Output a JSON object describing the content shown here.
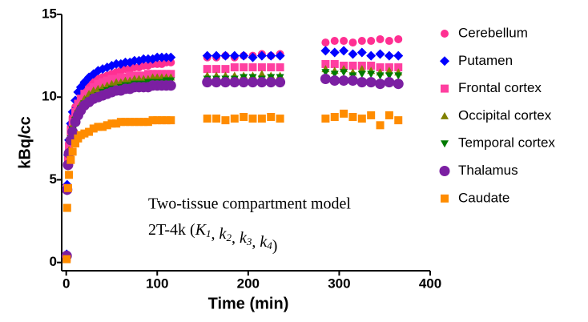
{
  "chart_data": {
    "type": "scatter",
    "xlabel": "Time (min)",
    "ylabel": "kBq/cc",
    "xlim": [
      -5,
      400
    ],
    "ylim": [
      -0.5,
      15
    ],
    "xticks": [
      0,
      100,
      200,
      300,
      400
    ],
    "yticks": [
      0,
      5,
      10,
      15
    ],
    "annotation": {
      "line1": "Two-tissue compartment model",
      "prefix": "2T-4k (",
      "separator": ", ",
      "suffix": ")",
      "params": [
        {
          "symbol": "K",
          "subscript": "1"
        },
        {
          "symbol": "k",
          "subscript": "2"
        },
        {
          "symbol": "k",
          "subscript": "3"
        },
        {
          "symbol": "k",
          "subscript": "4"
        }
      ]
    },
    "x": [
      0.5,
      1,
      2,
      3,
      5,
      7,
      10,
      13,
      16,
      20,
      25,
      30,
      35,
      40,
      45,
      50,
      55,
      60,
      65,
      70,
      75,
      80,
      85,
      90,
      95,
      100,
      105,
      110,
      115,
      155,
      165,
      175,
      185,
      195,
      205,
      215,
      225,
      235,
      285,
      295,
      305,
      315,
      325,
      335,
      345,
      355,
      365
    ],
    "series": [
      {
        "name": "Cerebellum",
        "color": "#ff2f92",
        "marker": "circle",
        "values": [
          0.4,
          4.6,
          6.4,
          7.2,
          8.2,
          8.8,
          9.4,
          9.8,
          10.1,
          10.4,
          10.7,
          10.9,
          11.1,
          11.2,
          11.3,
          11.4,
          11.5,
          11.6,
          11.7,
          11.7,
          11.8,
          11.8,
          11.9,
          11.9,
          12.0,
          12.0,
          12.0,
          12.1,
          12.1,
          12.4,
          12.4,
          12.5,
          12.4,
          12.5,
          12.5,
          12.6,
          12.5,
          12.6,
          13.3,
          13.4,
          13.4,
          13.3,
          13.4,
          13.4,
          13.5,
          13.4,
          13.5
        ]
      },
      {
        "name": "Putamen",
        "color": "#0000ff",
        "marker": "diamond",
        "values": [
          0.5,
          4.7,
          6.5,
          7.4,
          8.4,
          9.1,
          9.8,
          10.3,
          10.6,
          10.9,
          11.2,
          11.4,
          11.6,
          11.7,
          11.8,
          11.9,
          12.0,
          12.0,
          12.1,
          12.1,
          12.2,
          12.2,
          12.3,
          12.3,
          12.3,
          12.4,
          12.4,
          12.4,
          12.4,
          12.5,
          12.5,
          12.5,
          12.5,
          12.5,
          12.4,
          12.5,
          12.5,
          12.5,
          12.8,
          12.7,
          12.8,
          12.6,
          12.7,
          12.5,
          12.6,
          12.5,
          12.5
        ]
      },
      {
        "name": "Frontal cortex",
        "color": "#ff3fa0",
        "marker": "square",
        "values": [
          0.3,
          4.5,
          6.2,
          7.0,
          7.9,
          8.5,
          9.1,
          9.6,
          9.9,
          10.2,
          10.4,
          10.6,
          10.8,
          10.9,
          11.0,
          11.1,
          11.1,
          11.2,
          11.2,
          11.3,
          11.3,
          11.3,
          11.3,
          11.4,
          11.4,
          11.4,
          11.4,
          11.4,
          11.4,
          11.7,
          11.7,
          11.7,
          11.8,
          11.8,
          11.8,
          11.8,
          11.8,
          11.8,
          12.0,
          12.0,
          11.9,
          11.9,
          11.9,
          11.9,
          11.8,
          11.8,
          11.8
        ]
      },
      {
        "name": "Occipital cortex",
        "color": "#808000",
        "marker": "triangle-up",
        "values": [
          0.3,
          4.4,
          6.0,
          6.8,
          7.7,
          8.3,
          8.9,
          9.3,
          9.6,
          9.9,
          10.2,
          10.4,
          10.5,
          10.6,
          10.7,
          10.8,
          10.9,
          10.9,
          11.0,
          11.0,
          11.1,
          11.1,
          11.1,
          11.1,
          11.2,
          11.2,
          11.2,
          11.2,
          11.2,
          11.3,
          11.3,
          11.3,
          11.3,
          11.3,
          11.3,
          11.4,
          11.3,
          11.3,
          11.7,
          11.6,
          11.7,
          11.5,
          11.7,
          11.6,
          11.5,
          11.6,
          11.5
        ]
      },
      {
        "name": "Temporal cortex",
        "color": "#007a00",
        "marker": "triangle-down",
        "values": [
          0.3,
          4.3,
          5.8,
          6.6,
          7.5,
          8.0,
          8.6,
          9.0,
          9.3,
          9.6,
          9.8,
          10.0,
          10.1,
          10.3,
          10.4,
          10.5,
          10.5,
          10.6,
          10.7,
          10.7,
          10.8,
          10.8,
          10.8,
          10.9,
          10.9,
          10.9,
          10.9,
          11.0,
          11.0,
          11.1,
          11.1,
          11.1,
          11.1,
          11.2,
          11.2,
          11.1,
          11.2,
          11.2,
          11.5,
          11.4,
          11.5,
          11.3,
          11.4,
          11.4,
          11.3,
          11.3,
          11.3
        ]
      },
      {
        "name": "Thalamus",
        "color": "#7b1fa2",
        "marker": "circle",
        "values": [
          0.4,
          4.4,
          5.9,
          6.6,
          7.4,
          7.9,
          8.5,
          8.9,
          9.2,
          9.5,
          9.7,
          9.9,
          10.0,
          10.1,
          10.2,
          10.3,
          10.4,
          10.4,
          10.5,
          10.5,
          10.6,
          10.6,
          10.6,
          10.6,
          10.7,
          10.7,
          10.7,
          10.7,
          10.7,
          10.9,
          10.9,
          10.9,
          10.9,
          10.9,
          10.9,
          10.9,
          10.9,
          10.9,
          11.1,
          11.0,
          11.0,
          11.0,
          10.9,
          10.9,
          10.8,
          10.9,
          10.8
        ]
      },
      {
        "name": "Caudate",
        "color": "#ff8c00",
        "marker": "square",
        "values": [
          0.2,
          3.3,
          4.5,
          5.3,
          6.2,
          6.7,
          7.2,
          7.5,
          7.7,
          7.8,
          7.9,
          8.1,
          8.2,
          8.2,
          8.3,
          8.4,
          8.4,
          8.5,
          8.5,
          8.5,
          8.5,
          8.5,
          8.5,
          8.5,
          8.6,
          8.6,
          8.6,
          8.6,
          8.6,
          8.7,
          8.7,
          8.6,
          8.7,
          8.8,
          8.7,
          8.7,
          8.8,
          8.7,
          8.7,
          8.8,
          9.0,
          8.8,
          8.7,
          8.9,
          8.3,
          8.9,
          8.6
        ]
      }
    ]
  }
}
